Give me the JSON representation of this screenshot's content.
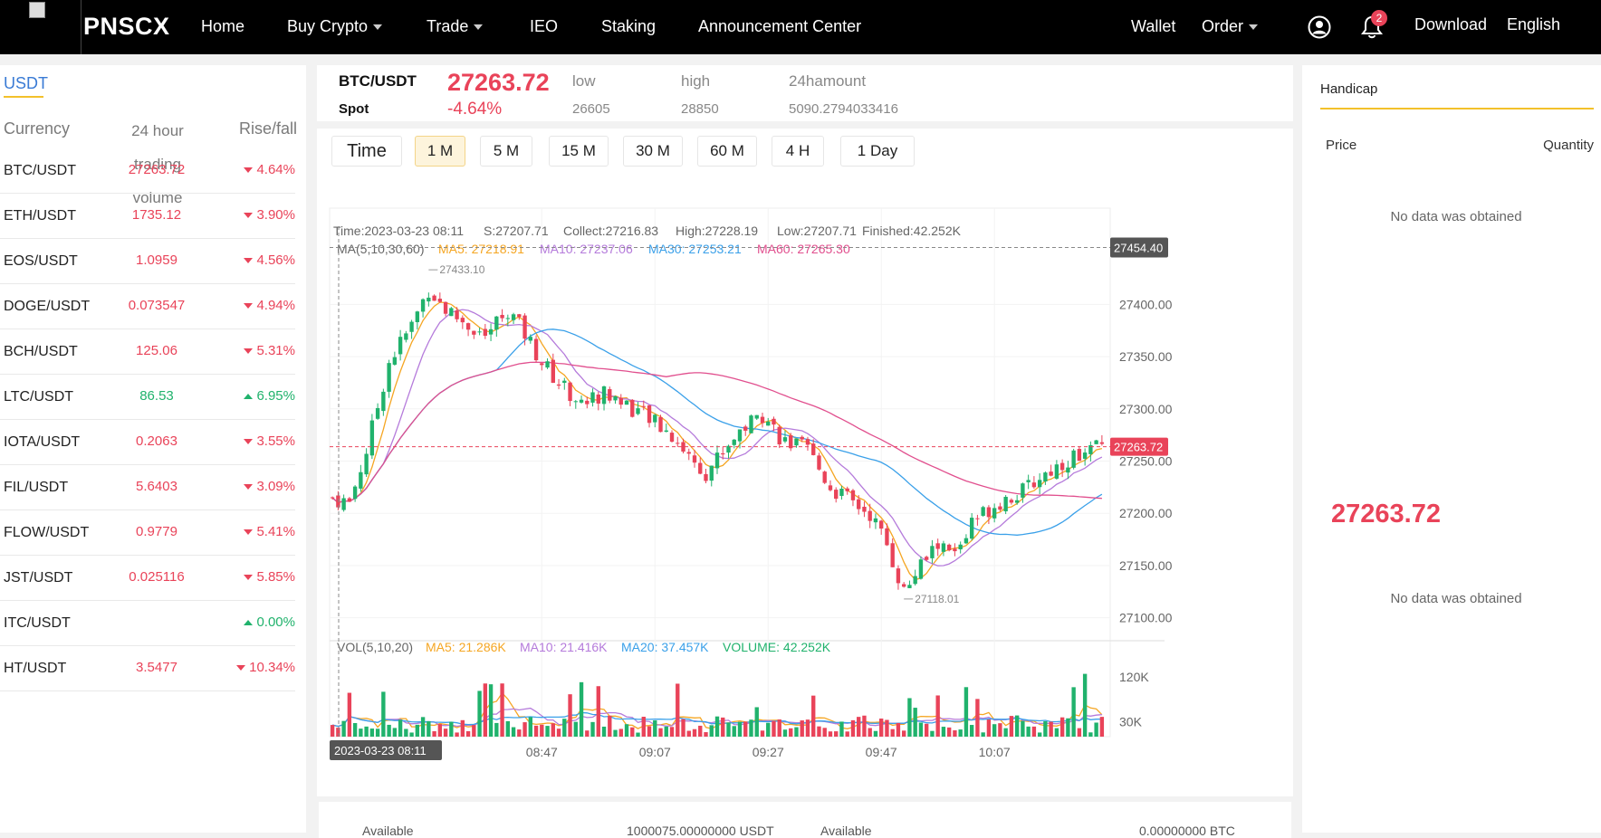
{
  "nav": {
    "brand": "PNSCX",
    "items": [
      "Home",
      "Buy Crypto",
      "Trade",
      "IEO",
      "Staking",
      "Announcement Center"
    ],
    "right": [
      "Wallet",
      "Order",
      "Download",
      "English"
    ],
    "notification_count": "2"
  },
  "market": {
    "tab": "USDT",
    "headers": {
      "currency": "Currency",
      "volume": "24 hour trading volume",
      "change": "Rise/fall"
    },
    "rows": [
      {
        "pair": "BTC/USDT",
        "price": "27263.72",
        "change": "4.64%",
        "dir": "down"
      },
      {
        "pair": "ETH/USDT",
        "price": "1735.12",
        "change": "3.90%",
        "dir": "down"
      },
      {
        "pair": "EOS/USDT",
        "price": "1.0959",
        "change": "4.56%",
        "dir": "down"
      },
      {
        "pair": "DOGE/USDT",
        "price": "0.073547",
        "change": "4.94%",
        "dir": "down"
      },
      {
        "pair": "BCH/USDT",
        "price": "125.06",
        "change": "5.31%",
        "dir": "down"
      },
      {
        "pair": "LTC/USDT",
        "price": "86.53",
        "change": "6.95%",
        "dir": "up"
      },
      {
        "pair": "IOTA/USDT",
        "price": "0.2063",
        "change": "3.55%",
        "dir": "down"
      },
      {
        "pair": "FIL/USDT",
        "price": "5.6403",
        "change": "3.09%",
        "dir": "down"
      },
      {
        "pair": "FLOW/USDT",
        "price": "0.9779",
        "change": "5.41%",
        "dir": "down"
      },
      {
        "pair": "JST/USDT",
        "price": "0.025116",
        "change": "5.85%",
        "dir": "down"
      },
      {
        "pair": "ITC/USDT",
        "price": "",
        "change": "0.00%",
        "dir": "up"
      },
      {
        "pair": "HT/USDT",
        "price": "3.5477",
        "change": "10.34%",
        "dir": "down"
      }
    ]
  },
  "ticker": {
    "pair": "BTC/USDT",
    "kind": "Spot",
    "price": "27263.72",
    "change": "-4.64%",
    "low_label": "low",
    "low": "26605",
    "high_label": "high",
    "high": "28850",
    "amount_label": "24hamount",
    "amount": "5090.2794033416"
  },
  "timeframes": [
    "Time",
    "1 M",
    "5 M",
    "15 M",
    "30 M",
    "60 M",
    "4 H",
    "1 Day"
  ],
  "active_timeframe": "1 M",
  "chart_info": {
    "time": "Time:2023-03-23 08:11",
    "s": "S:27207.71",
    "collect": "Collect:27216.83",
    "high": "High:27228.19",
    "low": "Low:27207.71",
    "finished": "Finished:42.252K",
    "ma_label": "MA(5,10,30,60)",
    "ma5": "MA5: 27218.91",
    "ma10": "MA10: 27237.06",
    "ma30": "MA30: 27253.21",
    "ma60": "MA60: 27265.30",
    "vol_label": "VOL(5,10,20)",
    "vma5": "MA5: 21.286K",
    "vma10": "MA10: 21.416K",
    "vma20": "MA20: 37.457K",
    "volume": "VOLUME: 42.252K",
    "crosshair_price": "27454.40",
    "current_price_tag": "27263.72",
    "max_label": "27433.10",
    "min_label": "27118.01",
    "cursor_time": "2023-03-23 08:11"
  },
  "chart_data": {
    "type": "candlestick",
    "ylim": [
      27085,
      27480
    ],
    "yticks": [
      "27400.00",
      "27350.00",
      "27300.00",
      "27250.00",
      "27200.00",
      "27150.00",
      "27100.00"
    ],
    "ytick_values": [
      27400,
      27350,
      27300,
      27250,
      27200,
      27150,
      27100
    ],
    "xticks": [
      "08:47",
      "09:07",
      "09:27",
      "09:47",
      "10:07"
    ],
    "xtick_index": [
      37,
      57,
      77,
      97,
      117
    ],
    "vol_ticks": [
      "120K",
      "30K"
    ],
    "vol_tick_values": [
      120,
      30
    ],
    "vol_max": 160,
    "candle_count": 137,
    "colors": {
      "up": "#20b26c",
      "down": "#e94359",
      "ma5": "#f5a623",
      "ma10": "#b57bdb",
      "ma30": "#3aa0e9",
      "ma60": "#e14f8e"
    },
    "anchors": [
      [
        0,
        27215
      ],
      [
        3,
        27210
      ],
      [
        6,
        27260
      ],
      [
        10,
        27345
      ],
      [
        14,
        27380
      ],
      [
        17,
        27415
      ],
      [
        20,
        27395
      ],
      [
        24,
        27380
      ],
      [
        27,
        27370
      ],
      [
        31,
        27395
      ],
      [
        34,
        27372
      ],
      [
        37,
        27345
      ],
      [
        40,
        27325
      ],
      [
        44,
        27305
      ],
      [
        48,
        27315
      ],
      [
        52,
        27305
      ],
      [
        56,
        27290
      ],
      [
        60,
        27275
      ],
      [
        63,
        27255
      ],
      [
        66,
        27240
      ],
      [
        69,
        27260
      ],
      [
        72,
        27280
      ],
      [
        76,
        27295
      ],
      [
        80,
        27268
      ],
      [
        84,
        27260
      ],
      [
        88,
        27225
      ],
      [
        92,
        27210
      ],
      [
        95,
        27200
      ],
      [
        98,
        27170
      ],
      [
        101,
        27125
      ],
      [
        104,
        27150
      ],
      [
        107,
        27170
      ],
      [
        110,
        27160
      ],
      [
        113,
        27190
      ],
      [
        116,
        27205
      ],
      [
        119,
        27215
      ],
      [
        122,
        27220
      ],
      [
        125,
        27235
      ],
      [
        128,
        27245
      ],
      [
        131,
        27255
      ],
      [
        136,
        27264
      ]
    ]
  },
  "right": {
    "title": "Handicap",
    "price_header": "Price",
    "qty_header": "Quantity",
    "no_data": "No data was obtained",
    "last_price": "27263.72"
  },
  "bottom": {
    "left_label": "Available",
    "left_value": "1000075.00000000 USDT",
    "right_label": "Available",
    "right_value": "0.00000000 BTC"
  }
}
